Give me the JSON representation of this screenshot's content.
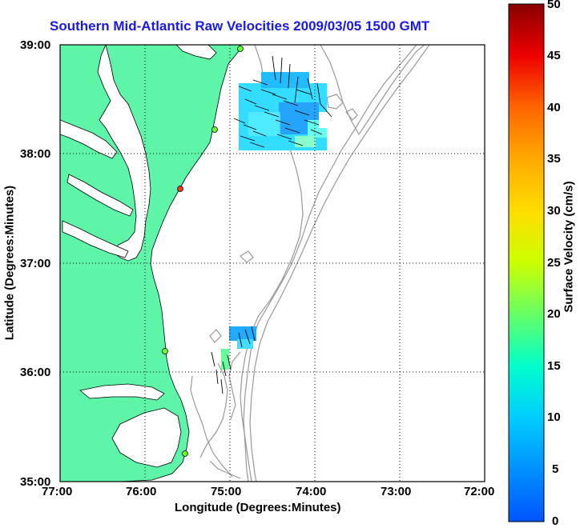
{
  "title": "Southern Mid-Atlantic Raw Velocities 2009/03/05 1500 GMT",
  "xlabel": "Longitude (Degrees:Minutes)",
  "ylabel": "Latitude (Degrees:Minutes)",
  "x_ticks": [
    "77:00",
    "76:00",
    "75:00",
    "74:00",
    "73:00",
    "72:00"
  ],
  "y_ticks": [
    "39:00",
    "38:00",
    "37:00",
    "36:00",
    "35:00"
  ],
  "colorbar": {
    "label": "Surface Velocity (cm/s)",
    "ticks": [
      "50",
      "45",
      "40",
      "35",
      "30",
      "25",
      "20",
      "15",
      "10",
      "5",
      "0"
    ],
    "min": 0,
    "max": 50
  },
  "map": {
    "lon_range": [
      -77,
      -72
    ],
    "lat_range": [
      35,
      39
    ],
    "land_color": "#5ef5a8",
    "grid": "dotted",
    "features": [
      "coastline",
      "bathymetry-contours",
      "velocity-vectors",
      "radar-sites"
    ]
  }
}
